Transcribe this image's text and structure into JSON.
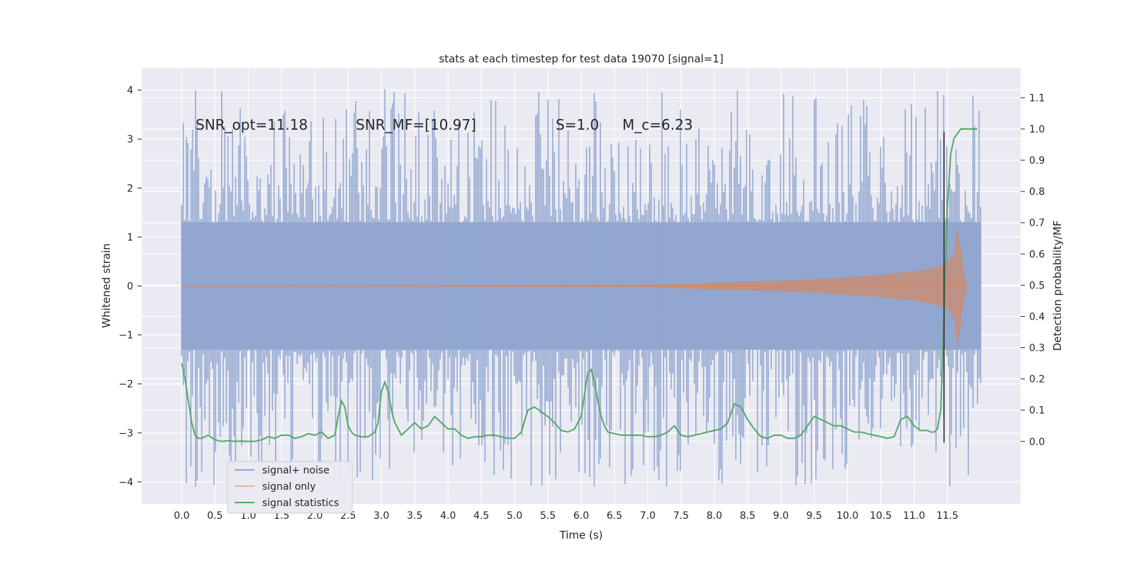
{
  "chart_data": {
    "type": "line",
    "title": "stats at each timestep for test data 19070 [signal=1]",
    "xlabel": "Time (s)",
    "ylabel": "Whitened strain",
    "y2label": "Detection probability/MF",
    "xlim": [
      -0.6,
      12.6
    ],
    "ylim": [
      -4.45,
      4.45
    ],
    "y2lim": [
      -0.2,
      1.195
    ],
    "xticks": [
      0.0,
      0.5,
      1.0,
      1.5,
      2.0,
      2.5,
      3.0,
      3.5,
      4.0,
      4.5,
      5.0,
      5.5,
      6.0,
      6.5,
      7.0,
      7.5,
      8.0,
      8.5,
      9.0,
      9.5,
      10.0,
      10.5,
      11.0,
      11.5
    ],
    "xtick_labels": [
      "0.0",
      "0.5",
      "1.0",
      "1.5",
      "2.0",
      "2.5",
      "3.0",
      "3.5",
      "4.0",
      "4.5",
      "5.0",
      "5.5",
      "6.0",
      "6.5",
      "7.0",
      "7.5",
      "8.0",
      "8.5",
      "9.0",
      "9.5",
      "10.0",
      "10.5",
      "11.0",
      "11.5"
    ],
    "yticks": [
      -4,
      -3,
      -2,
      -1,
      0,
      1,
      2,
      3,
      4
    ],
    "ytick_labels": [
      "−4",
      "−3",
      "−2",
      "−1",
      "0",
      "1",
      "2",
      "3",
      "4"
    ],
    "y2ticks": [
      0.0,
      0.1,
      0.2,
      0.3,
      0.4,
      0.5,
      0.6,
      0.7,
      0.8,
      0.9,
      1.0,
      1.1
    ],
    "y2tick_labels": [
      "0.0",
      "0.1",
      "0.2",
      "0.3",
      "0.4",
      "0.5",
      "0.6",
      "0.7",
      "0.8",
      "0.9",
      "1.0",
      "1.1"
    ],
    "grid": true,
    "legend_position": "lower-left",
    "annotations": [
      {
        "id": "snr-opt",
        "text": "SNR_opt=11.18"
      },
      {
        "id": "snr-mf",
        "text": "SNR_MF=[10.97]"
      },
      {
        "id": "s-val",
        "text": "S=1.0"
      },
      {
        "id": "mc-val",
        "text": "M_c=6.23"
      }
    ],
    "series": [
      {
        "name": "signal+ noise",
        "type": "noise-band",
        "color": "#8fa5cf",
        "x_range": [
          0.0,
          12.0
        ],
        "typical_band": [
          -1.3,
          1.3
        ],
        "max": 4.05,
        "min": -4.1
      },
      {
        "name": "signal only",
        "type": "chirp",
        "color": "#dd8452",
        "x": [
          0.0,
          7.0,
          7.5,
          8.0,
          8.5,
          9.0,
          9.5,
          10.0,
          10.5,
          11.0,
          11.3,
          11.5,
          11.6,
          11.65,
          11.7,
          11.75,
          11.8
        ],
        "envelope": [
          0.0,
          0.02,
          0.05,
          0.07,
          0.09,
          0.11,
          0.14,
          0.18,
          0.23,
          0.3,
          0.37,
          0.47,
          0.65,
          1.25,
          0.8,
          0.3,
          0.0
        ]
      },
      {
        "name": "signal statistics",
        "type": "line",
        "axis": "right",
        "color": "#55a868",
        "x": [
          0.0,
          0.05,
          0.1,
          0.15,
          0.2,
          0.25,
          0.3,
          0.35,
          0.4,
          0.5,
          0.6,
          0.7,
          0.8,
          0.9,
          1.0,
          1.1,
          1.2,
          1.3,
          1.4,
          1.5,
          1.6,
          1.7,
          1.8,
          1.9,
          2.0,
          2.1,
          2.2,
          2.3,
          2.35,
          2.4,
          2.45,
          2.5,
          2.55,
          2.6,
          2.7,
          2.8,
          2.9,
          2.95,
          3.0,
          3.05,
          3.1,
          3.15,
          3.2,
          3.3,
          3.4,
          3.5,
          3.6,
          3.7,
          3.8,
          3.9,
          4.0,
          4.1,
          4.2,
          4.3,
          4.4,
          4.5,
          4.6,
          4.7,
          4.8,
          4.9,
          5.0,
          5.1,
          5.2,
          5.3,
          5.4,
          5.5,
          5.6,
          5.7,
          5.8,
          5.9,
          6.0,
          6.1,
          6.15,
          6.2,
          6.25,
          6.3,
          6.35,
          6.4,
          6.5,
          6.6,
          6.7,
          6.8,
          6.9,
          7.0,
          7.1,
          7.2,
          7.3,
          7.4,
          7.5,
          7.6,
          7.7,
          7.8,
          7.9,
          8.0,
          8.1,
          8.2,
          8.3,
          8.4,
          8.5,
          8.6,
          8.7,
          8.8,
          8.9,
          9.0,
          9.1,
          9.2,
          9.3,
          9.4,
          9.5,
          9.6,
          9.7,
          9.8,
          9.9,
          10.0,
          10.1,
          10.2,
          10.3,
          10.4,
          10.5,
          10.6,
          10.7,
          10.8,
          10.9,
          11.0,
          11.1,
          11.2,
          11.25,
          11.3,
          11.35,
          11.4,
          11.45,
          11.5,
          11.55,
          11.6,
          11.7,
          11.8,
          11.9,
          11.95
        ],
        "values": [
          0.25,
          0.2,
          0.13,
          0.06,
          0.02,
          0.01,
          0.01,
          0.015,
          0.02,
          0.005,
          0.0,
          0.002,
          0.0,
          0.001,
          0.0,
          0.0,
          0.005,
          0.015,
          0.01,
          0.02,
          0.02,
          0.01,
          0.015,
          0.025,
          0.02,
          0.03,
          0.01,
          0.02,
          0.08,
          0.13,
          0.11,
          0.05,
          0.03,
          0.02,
          0.015,
          0.015,
          0.03,
          0.06,
          0.16,
          0.19,
          0.16,
          0.1,
          0.06,
          0.02,
          0.04,
          0.06,
          0.04,
          0.05,
          0.08,
          0.06,
          0.04,
          0.04,
          0.02,
          0.01,
          0.015,
          0.015,
          0.02,
          0.02,
          0.015,
          0.01,
          0.01,
          0.03,
          0.1,
          0.11,
          0.095,
          0.08,
          0.06,
          0.035,
          0.03,
          0.04,
          0.08,
          0.22,
          0.23,
          0.19,
          0.13,
          0.08,
          0.05,
          0.03,
          0.025,
          0.02,
          0.02,
          0.02,
          0.02,
          0.015,
          0.015,
          0.02,
          0.03,
          0.05,
          0.02,
          0.015,
          0.02,
          0.025,
          0.03,
          0.035,
          0.04,
          0.06,
          0.12,
          0.11,
          0.07,
          0.04,
          0.015,
          0.01,
          0.02,
          0.02,
          0.01,
          0.01,
          0.02,
          0.05,
          0.08,
          0.07,
          0.06,
          0.05,
          0.05,
          0.04,
          0.03,
          0.03,
          0.025,
          0.02,
          0.015,
          0.01,
          0.015,
          0.07,
          0.08,
          0.05,
          0.035,
          0.035,
          0.03,
          0.03,
          0.04,
          0.1,
          0.4,
          0.75,
          0.92,
          0.97,
          1.0,
          1.0,
          1.0,
          1.0
        ]
      },
      {
        "name": "",
        "type": "vline",
        "color": "#2f2f2f",
        "x": 11.45,
        "y_range": [
          -3.2,
          3.15
        ]
      }
    ]
  }
}
